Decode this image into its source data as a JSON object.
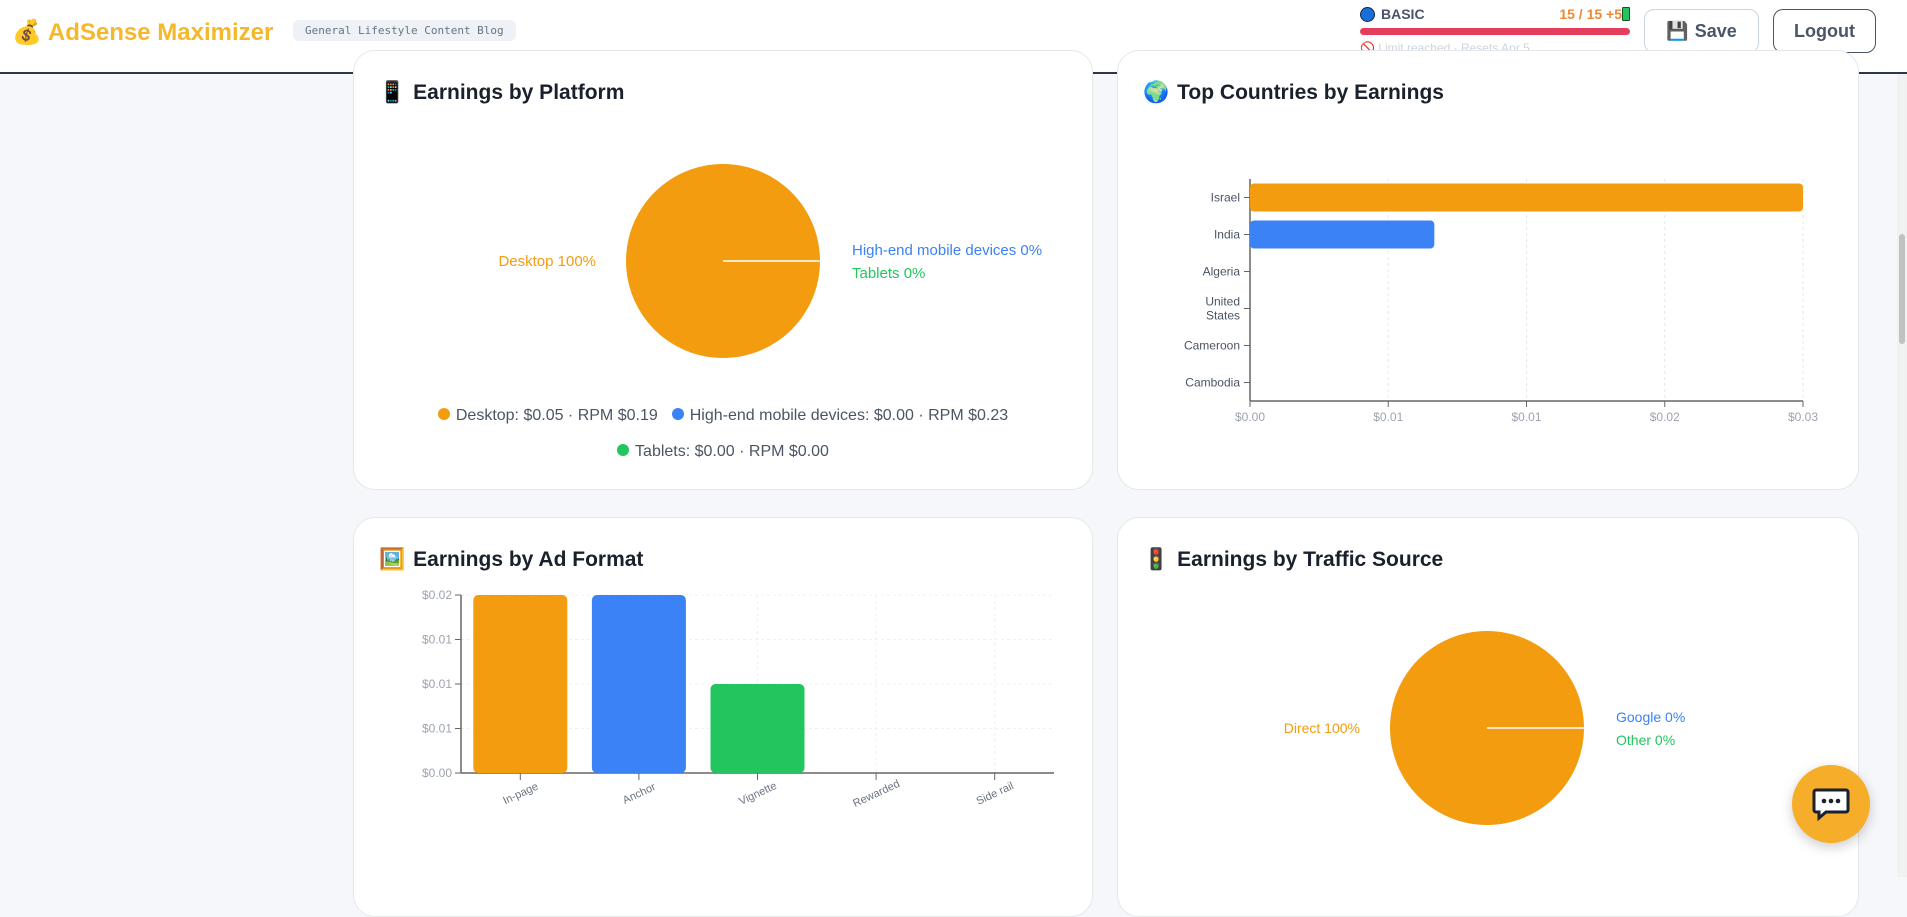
{
  "header": {
    "logo_icon": "money-bag-icon",
    "app_name": "AdSense Maximizer",
    "site_tag": "General Lifestyle Content Blog",
    "plan": {
      "name": "BASIC",
      "usage": "15 / 15 +5",
      "limit_text": "Limit reached · Resets Apr 5",
      "usage_fraction": 1.0,
      "bar_color": "#e53e5c"
    },
    "save_label": "Save",
    "logout_label": "Logout"
  },
  "colors": {
    "orange": "#f39c0f",
    "blue": "#3b82f6",
    "green": "#22c55e"
  },
  "platform": {
    "title": "Earnings by Platform",
    "icon": "mobile-phone-icon",
    "pie_labels": [
      "Desktop 100%",
      "High-end mobile devices 0%",
      "Tablets 0%"
    ],
    "legend": [
      "Desktop: $0.05 · RPM $0.19",
      "High-end mobile devices: $0.00 · RPM $0.23",
      "Tablets: $0.00 · RPM $0.00"
    ]
  },
  "countries": {
    "title": "Top Countries by Earnings",
    "icon": "globe-icon"
  },
  "adformat": {
    "title": "Earnings by Ad Format",
    "icon": "picture-icon"
  },
  "traffic": {
    "title": "Earnings by Traffic Source",
    "icon": "traffic-light-icon",
    "pie_labels": [
      "Direct 100%",
      "Google 0%",
      "Other 0%"
    ]
  },
  "chart_data": [
    {
      "type": "pie",
      "categories": [
        "Desktop",
        "High-end mobile devices",
        "Tablets"
      ],
      "values": [
        100,
        0,
        0
      ]
    },
    {
      "type": "bar",
      "orientation": "horizontal",
      "categories": [
        "Israel",
        "India",
        "Algeria",
        "United States",
        "Cameroon",
        "Cambodia"
      ],
      "values": [
        0.03,
        0.01,
        0,
        0,
        0,
        0
      ],
      "xlim": [
        0,
        0.03
      ],
      "xticks": [
        "$0.00",
        "$0.01",
        "$0.01",
        "$0.02",
        "$0.03"
      ],
      "grid": true
    },
    {
      "type": "bar",
      "categories": [
        "In-page",
        "Anchor",
        "Vignette",
        "Rewarded",
        "Side rail"
      ],
      "values": [
        0.02,
        0.02,
        0.01,
        0,
        0
      ],
      "ylim": [
        0,
        0.02
      ],
      "yticks": [
        "$0.00",
        "$0.01",
        "$0.01",
        "$0.01",
        "$0.02"
      ],
      "grid": true
    },
    {
      "type": "pie",
      "categories": [
        "Direct",
        "Google",
        "Other"
      ],
      "values": [
        100,
        0,
        0
      ]
    }
  ]
}
